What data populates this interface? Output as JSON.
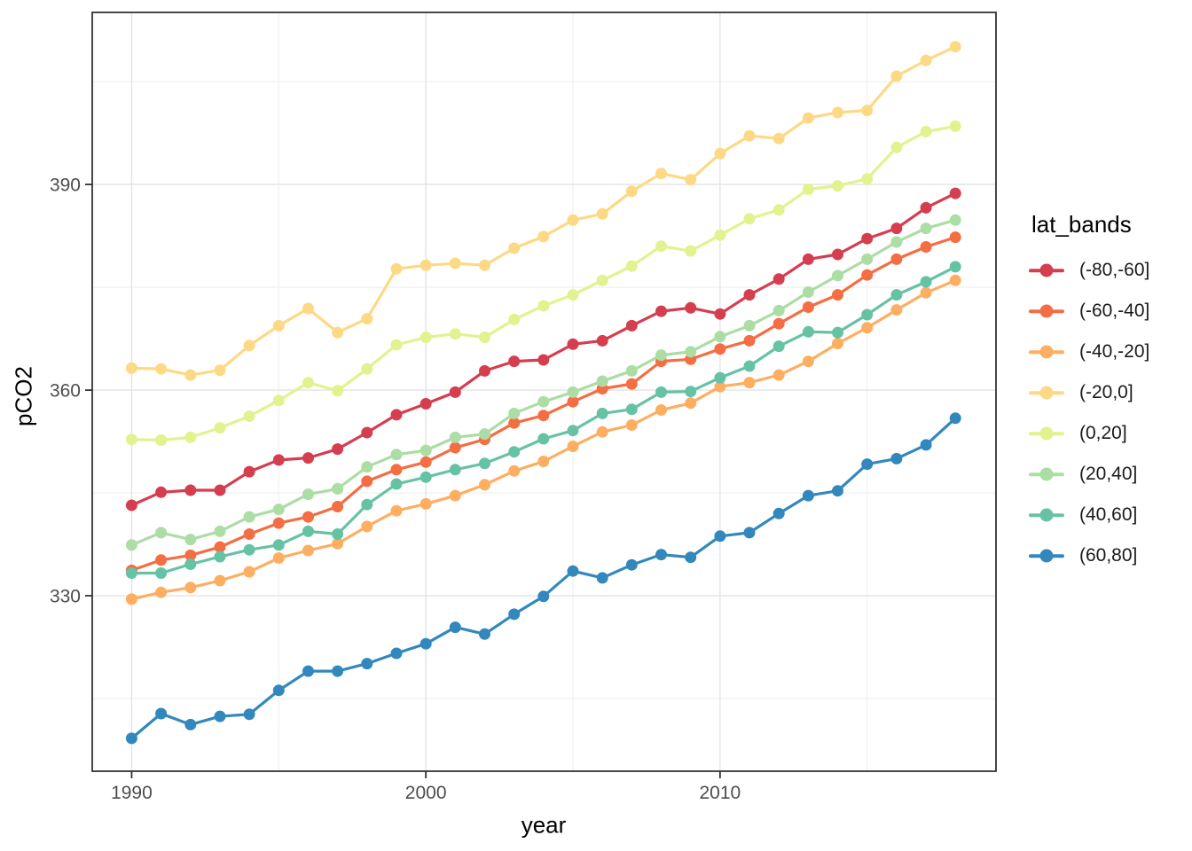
{
  "figure": {
    "background": "#ffffff",
    "panel_border_color": "#333333",
    "gridline_major_color": "#e3e3e3",
    "gridline_minor_color": "#efefef",
    "tick_mark_color": "#333333",
    "tick_label_color": "#4d4d4d",
    "axis_title_color": "#000000"
  },
  "chart_data": {
    "type": "line",
    "title": "",
    "xlabel": "year",
    "ylabel": "pCO2",
    "grid": true,
    "legend": {
      "title": "lat_bands",
      "position": "right"
    },
    "x": [
      1990,
      1991,
      1992,
      1993,
      1994,
      1995,
      1996,
      1997,
      1998,
      1999,
      2000,
      2001,
      2002,
      2003,
      2004,
      2005,
      2006,
      2007,
      2008,
      2009,
      2010,
      2011,
      2012,
      2013,
      2014,
      2015,
      2016,
      2017,
      2018
    ],
    "xlim": [
      1988.66,
      2019.38
    ],
    "ylim": [
      304.4,
      415.1
    ],
    "x_major_ticks": [
      1990,
      2000,
      2010
    ],
    "x_minor_ticks": [
      1995,
      2005,
      2015
    ],
    "y_major_ticks": [
      330,
      360,
      390
    ],
    "y_minor_ticks": [
      315,
      345,
      375,
      405
    ],
    "series": [
      {
        "name": "(-80,-60]",
        "color": "#d53e4f",
        "values": [
          343.2,
          345.1,
          345.4,
          345.4,
          348.1,
          349.8,
          350.1,
          351.4,
          353.8,
          356.4,
          358.0,
          359.7,
          362.8,
          364.2,
          364.4,
          366.7,
          367.2,
          369.4,
          371.5,
          372.0,
          371.1,
          373.9,
          376.2,
          379.1,
          379.8,
          382.1,
          383.6,
          386.6,
          388.7
        ]
      },
      {
        "name": "(-60,-40]",
        "color": "#f46d43",
        "values": [
          333.7,
          335.2,
          335.9,
          337.1,
          339.0,
          340.6,
          341.5,
          343.0,
          346.7,
          348.4,
          349.5,
          351.6,
          352.8,
          355.2,
          356.3,
          358.3,
          360.2,
          360.9,
          364.2,
          364.5,
          366.0,
          367.2,
          369.7,
          372.1,
          373.9,
          376.8,
          379.1,
          380.9,
          382.3
        ]
      },
      {
        "name": "(-40,-20]",
        "color": "#fdae61",
        "values": [
          329.5,
          330.5,
          331.2,
          332.2,
          333.5,
          335.5,
          336.6,
          337.6,
          340.1,
          342.4,
          343.4,
          344.6,
          346.2,
          348.2,
          349.6,
          351.8,
          353.9,
          354.9,
          357.1,
          358.1,
          360.5,
          361.1,
          362.2,
          364.2,
          366.8,
          369.1,
          371.7,
          374.2,
          376.0
        ]
      },
      {
        "name": "(-20,0]",
        "color": "#fdd985",
        "values": [
          363.2,
          363.1,
          362.2,
          362.9,
          366.5,
          369.4,
          371.9,
          368.4,
          370.4,
          377.7,
          378.2,
          378.5,
          378.2,
          380.7,
          382.4,
          384.8,
          385.7,
          389.0,
          391.6,
          390.7,
          394.5,
          397.1,
          396.7,
          399.7,
          400.5,
          400.8,
          405.8,
          408.1,
          410.1
        ]
      },
      {
        "name": "(0,20]",
        "color": "#e2f28f",
        "values": [
          352.8,
          352.7,
          353.1,
          354.5,
          356.2,
          358.5,
          361.1,
          359.9,
          363.1,
          366.6,
          367.7,
          368.2,
          367.7,
          370.3,
          372.3,
          373.9,
          376.0,
          378.1,
          381.0,
          380.3,
          382.6,
          385.0,
          386.3,
          389.3,
          389.8,
          390.8,
          395.4,
          397.7,
          398.5
        ]
      },
      {
        "name": "(20,40]",
        "color": "#abdda4",
        "values": [
          337.4,
          339.2,
          338.2,
          339.4,
          341.5,
          342.6,
          344.8,
          345.6,
          348.8,
          350.6,
          351.2,
          353.1,
          353.6,
          356.6,
          358.3,
          359.7,
          361.3,
          362.8,
          365.1,
          365.6,
          367.8,
          369.4,
          371.6,
          374.3,
          376.7,
          379.1,
          381.6,
          383.6,
          384.8
        ]
      },
      {
        "name": "(40,60]",
        "color": "#66c2a5",
        "values": [
          333.3,
          333.3,
          334.6,
          335.7,
          336.7,
          337.4,
          339.4,
          339.0,
          343.3,
          346.3,
          347.3,
          348.4,
          349.3,
          351.0,
          352.9,
          354.1,
          356.6,
          357.2,
          359.7,
          359.8,
          361.8,
          363.5,
          366.4,
          368.5,
          368.4,
          371.0,
          373.9,
          375.8,
          378.0
        ]
      },
      {
        "name": "(60,80]",
        "color": "#3288bd",
        "values": [
          309.2,
          312.8,
          311.2,
          312.4,
          312.7,
          316.2,
          319.0,
          319.0,
          320.1,
          321.6,
          323.0,
          325.4,
          324.4,
          327.3,
          329.9,
          333.6,
          332.6,
          334.5,
          336.0,
          335.6,
          338.7,
          339.2,
          342.0,
          344.6,
          345.3,
          349.2,
          350.0,
          352.0,
          355.9
        ]
      }
    ]
  }
}
